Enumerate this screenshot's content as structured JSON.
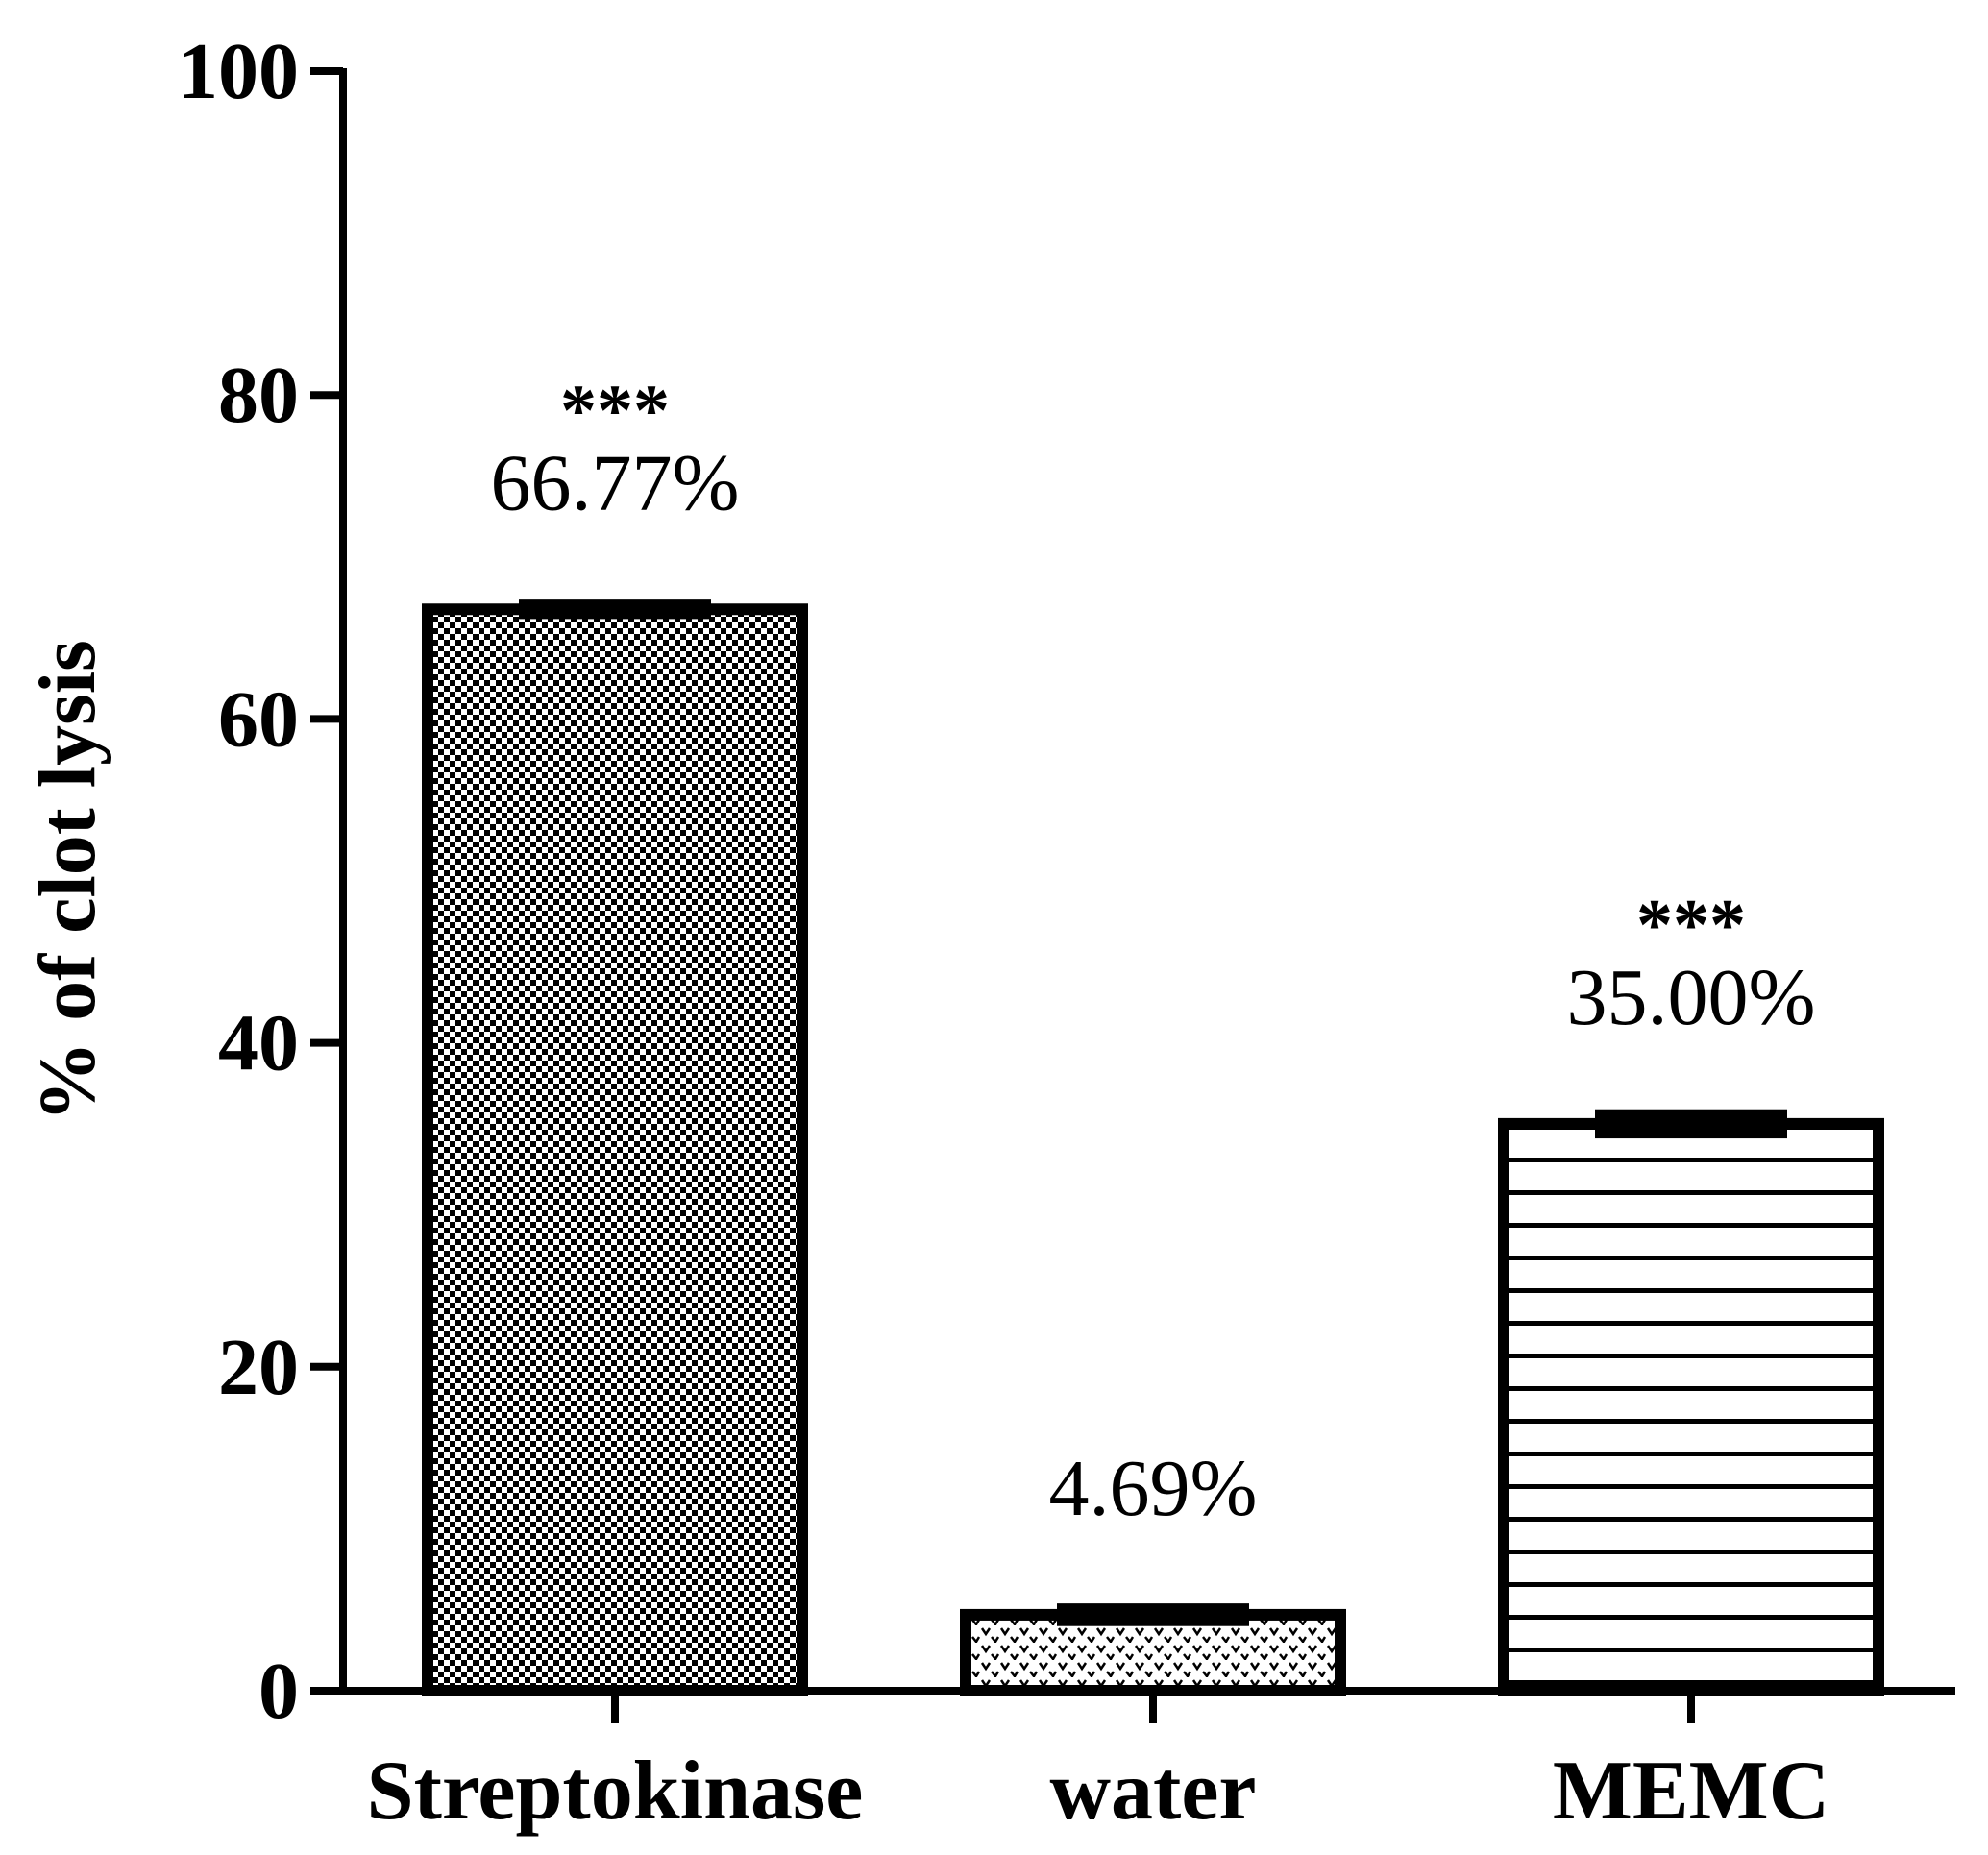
{
  "chart_data": {
    "type": "bar",
    "title": "",
    "xlabel": "",
    "ylabel": "% of clot lysis",
    "ylim": [
      0,
      100
    ],
    "yticks": [
      0,
      20,
      40,
      60,
      80,
      100
    ],
    "ytick_labels": [
      "0",
      "20",
      "40",
      "60",
      "80",
      "100"
    ],
    "categories": [
      "Streptokinase",
      "water",
      "MEMC"
    ],
    "values": [
      66.77,
      4.69,
      35.0
    ],
    "errors": [
      0.6,
      0.7,
      0.9
    ],
    "data_labels": [
      "66.77%",
      "4.69%",
      "35.00%"
    ],
    "significance": [
      "***",
      "",
      "***"
    ],
    "patterns": [
      "checkerboard",
      "dots",
      "horizontal-lines"
    ],
    "grid": false,
    "colors": {
      "stroke": "#000000",
      "fill": "#ffffff"
    }
  }
}
